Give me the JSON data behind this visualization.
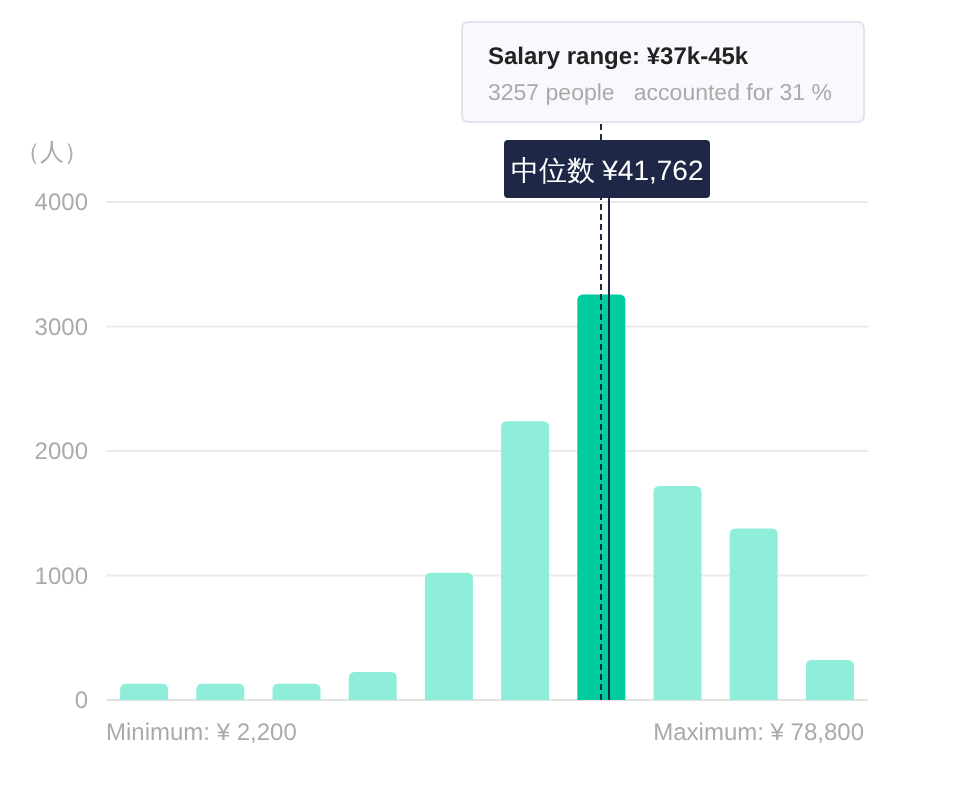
{
  "chart_data": {
    "type": "bar",
    "ylabel": "（人）",
    "categories": [
      null,
      null,
      null,
      null,
      null,
      null,
      null,
      null,
      null,
      null
    ],
    "values": [
      130,
      130,
      130,
      225,
      1023,
      2238,
      3257,
      1719,
      1377,
      321
    ],
    "colors": [
      "#8eeed9",
      "#8eeed9",
      "#8eeed9",
      "#8eeed9",
      "#8eeed9",
      "#8eeed9",
      "#00cc9f",
      "#8eeed9",
      "#8eeed9",
      "#8eeed9"
    ],
    "ylim": [
      0,
      4000
    ],
    "yticks": [
      0,
      1000,
      2000,
      3000,
      4000
    ],
    "grid": "y",
    "annotations": [
      "Minimum: ¥ 2,200",
      "Maximum: ¥ 78,800",
      "Salary range: ¥37k-45k",
      "3257 people   accounted for 31 %",
      "中位数 ¥41,762"
    ]
  }
}
